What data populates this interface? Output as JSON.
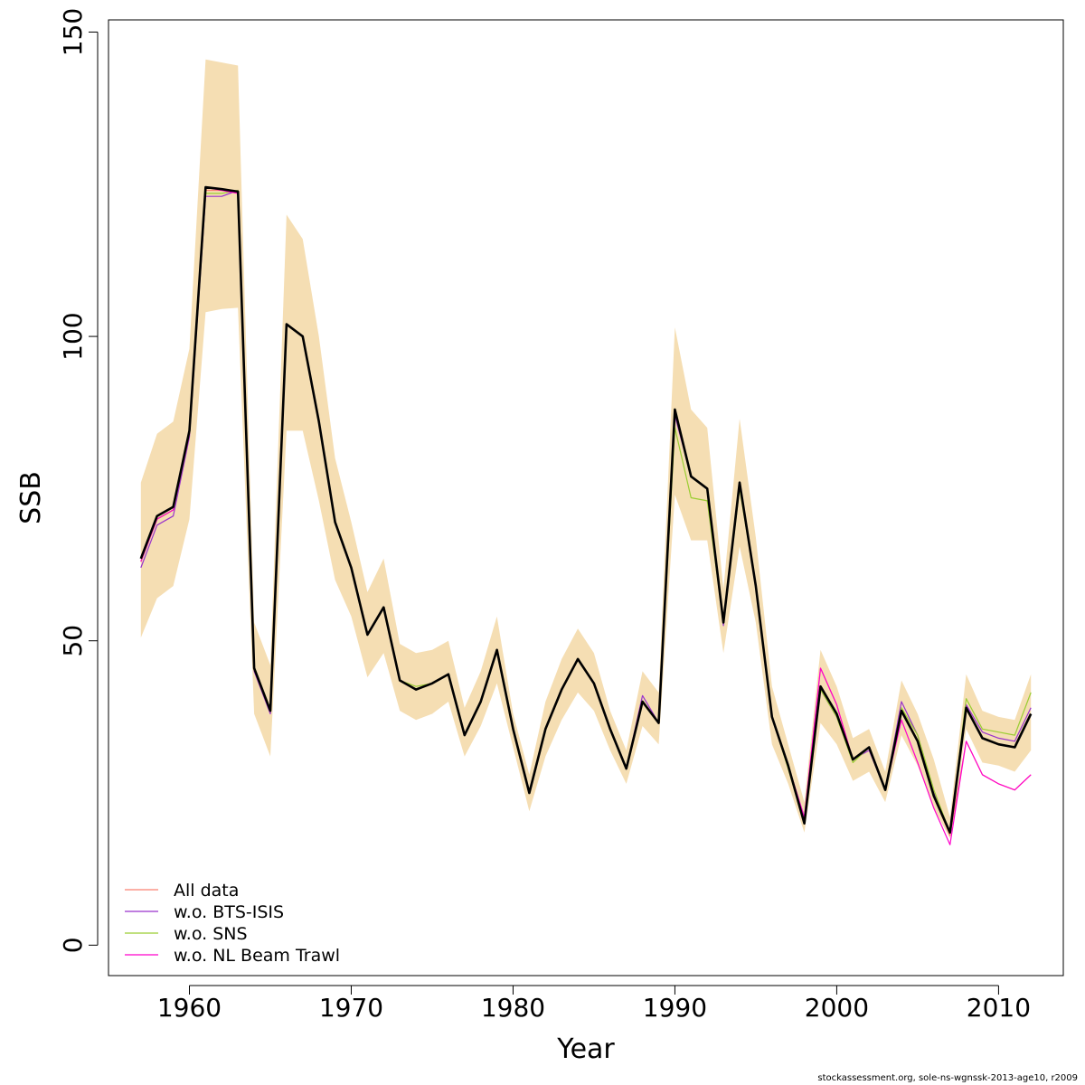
{
  "chart_data": {
    "type": "line",
    "xlabel": "Year",
    "ylabel": "SSB",
    "xlim": [
      1955,
      2014
    ],
    "ylim": [
      -5,
      152
    ],
    "x_ticks": [
      1960,
      1970,
      1980,
      1990,
      2000,
      2010
    ],
    "y_ticks": [
      0,
      50,
      100,
      150
    ],
    "grid": false,
    "legend_position": "bottom-left",
    "x": [
      1957,
      1958,
      1959,
      1960,
      1961,
      1962,
      1963,
      1964,
      1965,
      1966,
      1967,
      1968,
      1969,
      1970,
      1971,
      1972,
      1973,
      1974,
      1975,
      1976,
      1977,
      1978,
      1979,
      1980,
      1981,
      1982,
      1983,
      1984,
      1985,
      1986,
      1987,
      1988,
      1989,
      1990,
      1991,
      1992,
      1993,
      1994,
      1995,
      1996,
      1997,
      1998,
      1999,
      2000,
      2001,
      2002,
      2003,
      2004,
      2005,
      2006,
      2007,
      2008,
      2009,
      2010,
      2011,
      2012
    ],
    "band": {
      "color": "#F5DEB3",
      "lower": [
        50.5,
        57,
        59,
        70,
        104,
        104.5,
        104.7,
        38,
        31,
        84.5,
        84.5,
        73,
        60,
        54,
        44,
        48,
        38.5,
        37,
        38,
        40,
        31,
        36,
        43,
        32.5,
        22,
        31,
        37,
        41.5,
        38.5,
        32,
        26.5,
        36,
        33,
        74,
        66.5,
        66.5,
        48,
        65.5,
        53,
        33,
        26.5,
        18.5,
        36.5,
        33,
        27,
        28.5,
        23.5,
        34.5,
        29.5,
        22.5,
        17.5,
        35.5,
        30,
        29.5,
        28.5,
        32
      ],
      "upper": [
        76,
        84,
        86,
        98,
        145.5,
        145,
        144.5,
        53,
        46,
        120,
        116,
        100,
        80,
        69.5,
        58,
        63.5,
        49.5,
        48,
        48.5,
        50,
        39,
        45,
        54,
        38,
        28,
        40,
        47,
        52,
        48,
        38.5,
        32,
        45,
        41.5,
        101.5,
        88,
        85,
        58.5,
        86.5,
        67,
        42.5,
        33,
        23.5,
        48.5,
        42.5,
        34,
        35.5,
        28.5,
        43.5,
        38,
        30.5,
        21,
        44.5,
        38.5,
        37.5,
        37,
        44.5
      ]
    },
    "series": [
      {
        "name": "All data",
        "color": "#FA8072",
        "width": 1.2,
        "values": [
          63,
          70,
          71.5,
          84,
          124,
          124,
          123.5,
          45.5,
          38.5,
          102,
          100,
          86,
          69.5,
          62,
          51,
          55.5,
          43.5,
          42,
          43,
          44.5,
          34.5,
          40,
          48.5,
          35.5,
          25,
          35.5,
          42,
          47,
          43,
          35.5,
          29,
          40,
          36.5,
          88,
          77,
          75,
          53,
          76,
          59,
          37.5,
          29.5,
          21,
          45.5,
          39.5,
          30.5,
          32.5,
          25.5,
          38.5,
          33.5,
          24.5,
          18,
          33.5,
          28,
          26.5,
          25.5,
          28
        ]
      },
      {
        "name": "w.o. BTS-ISIS",
        "color": "#9932CC",
        "width": 1.2,
        "values": [
          62,
          69,
          70.5,
          83.5,
          123,
          123,
          124,
          45,
          38,
          102,
          100,
          86,
          69.5,
          62,
          51,
          55.5,
          43.5,
          42,
          43,
          44.5,
          34.5,
          40,
          48.5,
          35.5,
          25,
          35.5,
          42,
          47,
          43,
          35.5,
          29,
          41,
          36.5,
          87,
          77,
          75,
          52.5,
          76,
          59,
          37.5,
          29.5,
          21,
          42,
          37.5,
          30.5,
          32,
          25.5,
          40,
          34.5,
          25,
          18.5,
          39.5,
          35,
          34,
          33.5,
          39
        ]
      },
      {
        "name": "w.o. SNS",
        "color": "#9ACD32",
        "width": 1.2,
        "values": [
          63,
          70,
          71.5,
          84,
          123.5,
          123.5,
          124,
          45.5,
          38.5,
          102,
          100,
          86,
          69.5,
          62,
          51,
          55.5,
          43.5,
          42.5,
          43,
          44.5,
          34.5,
          40,
          48.5,
          35.5,
          25,
          35.5,
          42,
          47,
          43,
          35.5,
          29,
          40,
          36.5,
          85,
          73.5,
          73,
          53,
          75,
          59,
          37.5,
          29,
          20,
          42,
          37.5,
          30,
          32.5,
          25.5,
          39,
          34.5,
          25.5,
          18.5,
          40.5,
          35.5,
          35,
          34.5,
          41.5
        ]
      },
      {
        "name": "w.o. NL Beam Trawl",
        "color": "#FF00CC",
        "width": 1.2,
        "values": [
          63,
          70,
          71.5,
          84,
          124.5,
          124,
          123.5,
          45.5,
          38.5,
          102,
          100,
          86,
          69.5,
          62,
          51,
          55.5,
          43.5,
          42,
          43,
          44.5,
          34.5,
          40,
          48.5,
          35.5,
          25,
          35.5,
          42,
          47,
          43,
          35.5,
          29,
          40,
          36.5,
          88,
          77,
          75,
          53,
          76,
          59,
          37.5,
          29.5,
          21,
          45.5,
          39.5,
          30.5,
          32.5,
          25.5,
          37,
          30,
          22.5,
          16.5,
          33.5,
          28,
          26.5,
          25.5,
          28
        ]
      },
      {
        "name": "",
        "color": "#000000",
        "width": 2.6,
        "values": [
          63.5,
          70.5,
          72,
          84.5,
          124.5,
          124.2,
          123.8,
          45.5,
          38.5,
          102,
          100,
          86,
          69.5,
          62,
          51,
          55.5,
          43.5,
          42,
          43,
          44.5,
          34.5,
          40,
          48.5,
          35.5,
          25,
          35.5,
          42,
          47,
          43,
          35.5,
          29,
          40,
          36.5,
          88,
          77,
          75,
          53,
          76,
          59,
          37.5,
          29.5,
          20,
          42.5,
          38,
          30.5,
          32.5,
          25.5,
          38.5,
          33.5,
          24.5,
          18.5,
          39,
          34,
          33,
          32.5,
          38
        ]
      }
    ]
  },
  "footer": {
    "credit": "stockassessment.org, sole-ns-wgnssk-2013-age10, r2009"
  }
}
